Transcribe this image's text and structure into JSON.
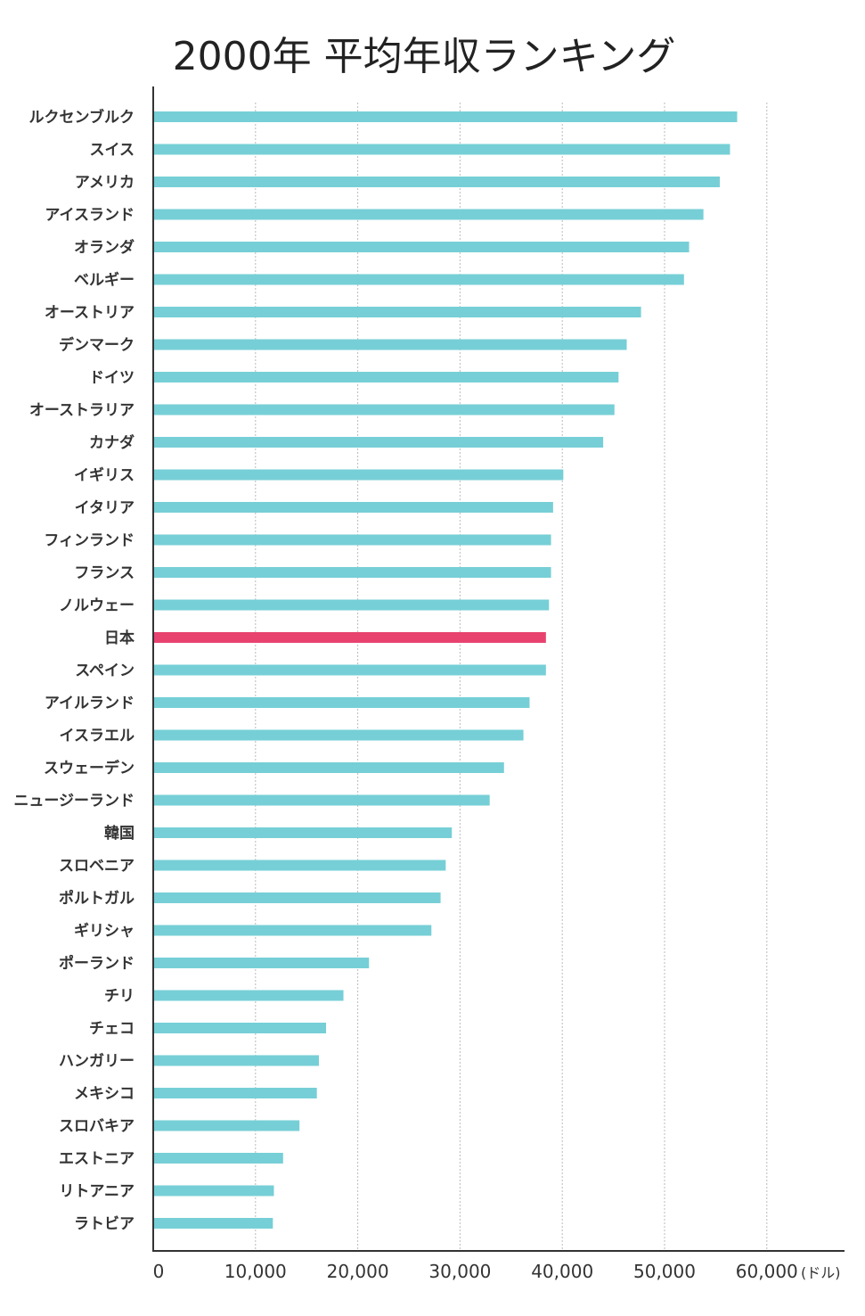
{
  "chart_data": {
    "type": "bar",
    "orientation": "horizontal",
    "title": "2000年 平均年収ランキング",
    "xlabel": "",
    "ylabel": "",
    "unit": "(ドル)",
    "xlim": [
      0,
      67000
    ],
    "xticks": [
      0,
      10000,
      20000,
      30000,
      40000,
      50000,
      60000
    ],
    "xtick_labels": [
      "0",
      "10,000",
      "20,000",
      "30,000",
      "40,000",
      "50,000",
      "60,000"
    ],
    "grid": "vertical dotted",
    "categories": [
      "ルクセンブルク",
      "スイス",
      "アメリカ",
      "アイスランド",
      "オランダ",
      "ベルギー",
      "オーストリア",
      "デンマーク",
      "ドイツ",
      "オーストラリア",
      "カナダ",
      "イギリス",
      "イタリア",
      "フィンランド",
      "フランス",
      "ノルウェー",
      "日本",
      "スペイン",
      "アイルランド",
      "イスラエル",
      "スウェーデン",
      "ニュージーランド",
      "韓国",
      "スロベニア",
      "ポルトガル",
      "ギリシャ",
      "ポーランド",
      "チリ",
      "チェコ",
      "ハンガリー",
      "メキシコ",
      "スロバキア",
      "エストニア",
      "リトアニア",
      "ラトビア"
    ],
    "values": [
      57100,
      56400,
      55400,
      53800,
      52400,
      51900,
      47700,
      46300,
      45500,
      45100,
      44000,
      40100,
      39100,
      38900,
      38900,
      38700,
      38400,
      38400,
      36800,
      36200,
      34300,
      32900,
      29200,
      28600,
      28100,
      27200,
      21100,
      18600,
      16900,
      16200,
      16000,
      14300,
      12700,
      11800,
      11700
    ],
    "highlight": "日本",
    "colors": {
      "bar": "#76cfd6",
      "highlight": "#e8436f",
      "axis": "#333333",
      "grid": "#bbbbbb"
    }
  }
}
